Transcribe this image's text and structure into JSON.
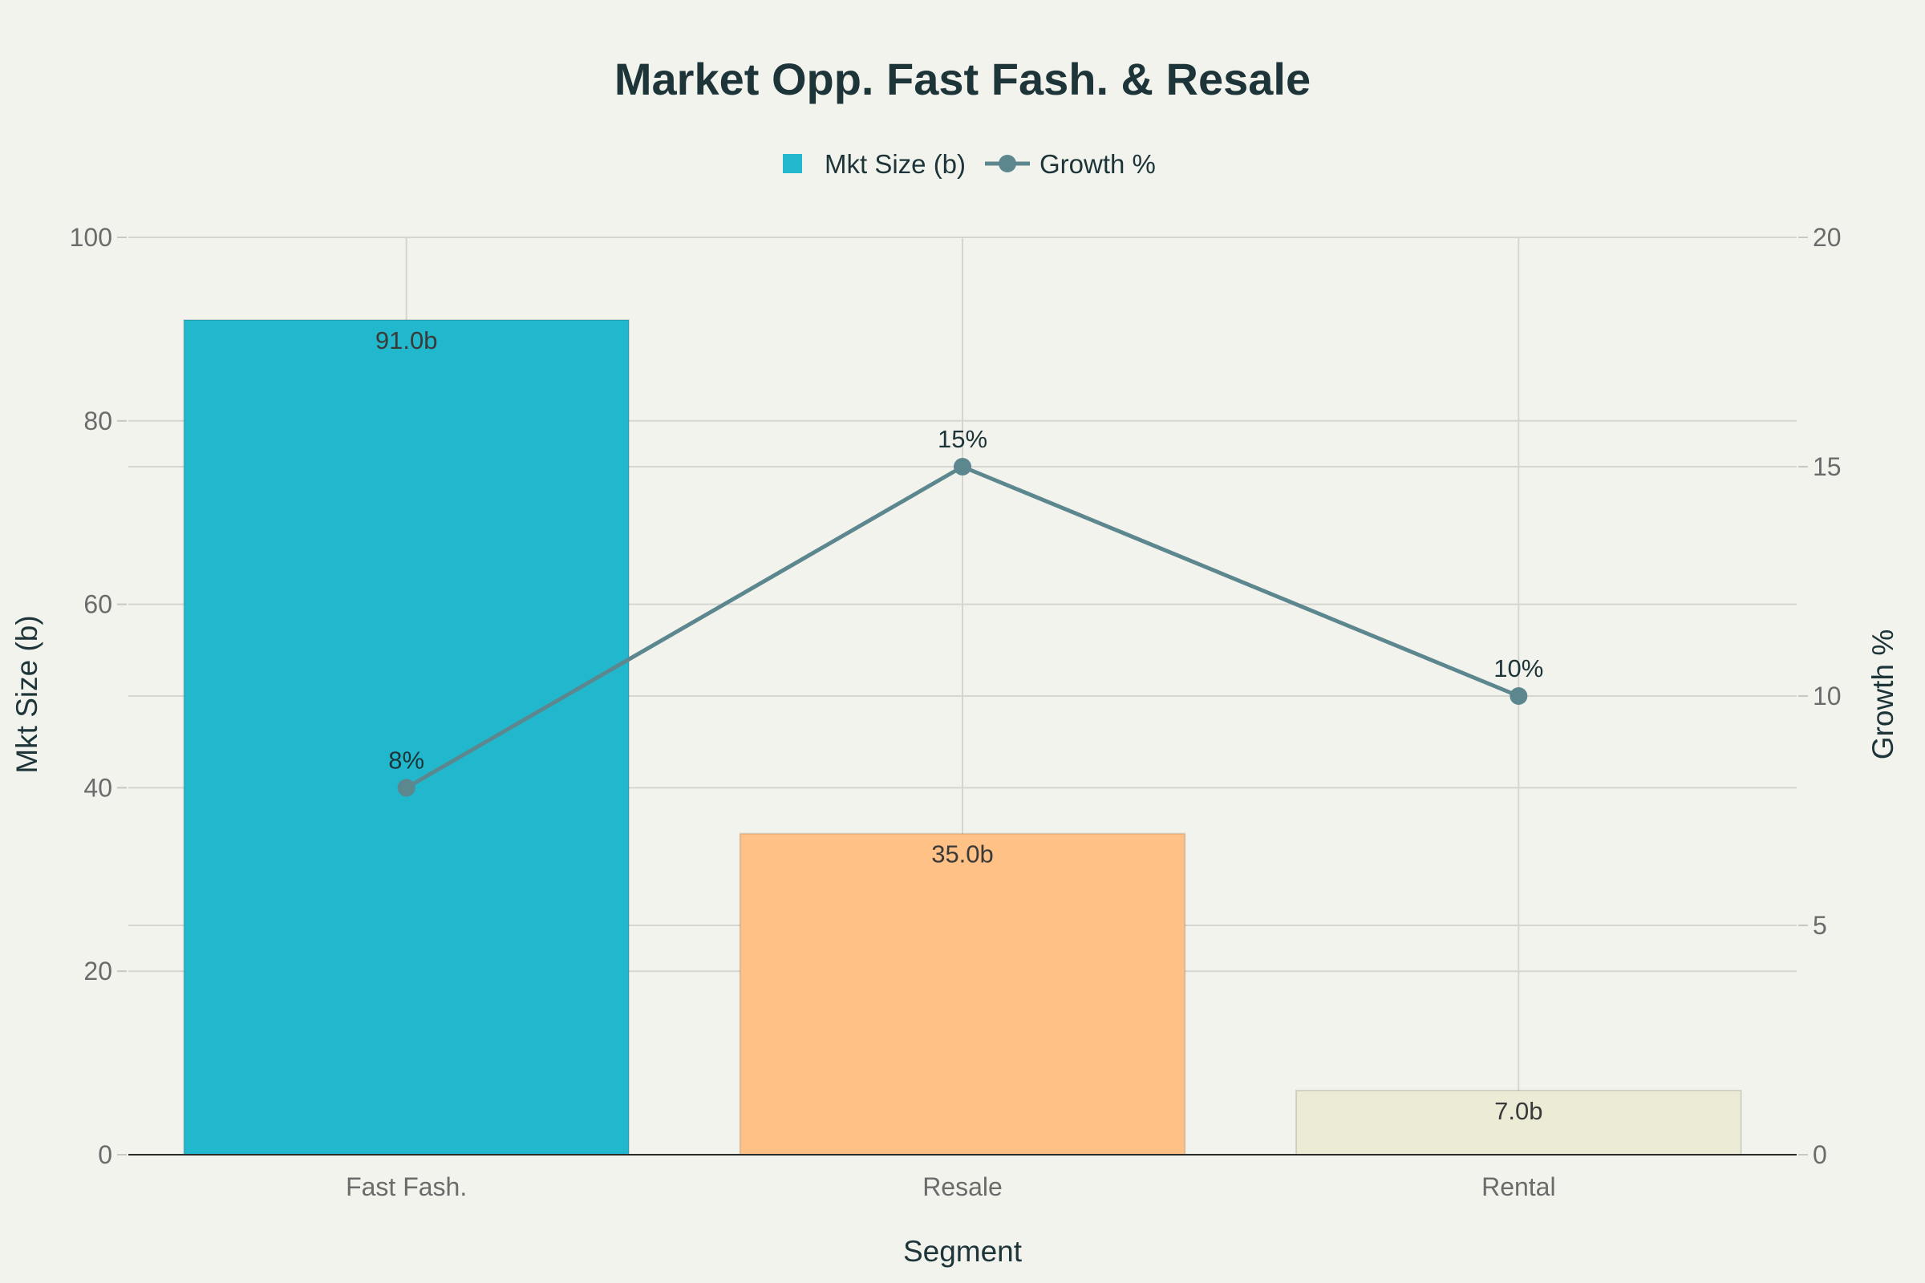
{
  "chart_data": {
    "type": "bar",
    "title": "Market Opp. Fast Fash. & Resale",
    "xlabel": "Segment",
    "ylabel": "Mkt Size (b)",
    "y2label": "Growth %",
    "categories": [
      "Fast Fash.",
      "Resale",
      "Rental"
    ],
    "ylim": [
      0,
      100
    ],
    "y2lim": [
      0,
      20
    ],
    "yticks": [
      0,
      20,
      40,
      60,
      80,
      100
    ],
    "y2ticks": [
      0,
      5,
      10,
      15,
      20
    ],
    "grid": true,
    "legend_position": "top-center",
    "series": [
      {
        "name": "Mkt Size (b)",
        "type": "bar",
        "axis": "left",
        "values": [
          91.0,
          35.0,
          7.0
        ],
        "labels": [
          "91.0b",
          "35.0b",
          "7.0b"
        ],
        "colors": [
          "#21b8cd",
          "#ffc185",
          "#ecebd5"
        ],
        "legend_color": "#21b8cd"
      },
      {
        "name": "Growth %",
        "type": "line",
        "axis": "right",
        "values": [
          8,
          15,
          10
        ],
        "labels": [
          "8%",
          "15%",
          "10%"
        ],
        "color": "#5d878f"
      }
    ]
  }
}
